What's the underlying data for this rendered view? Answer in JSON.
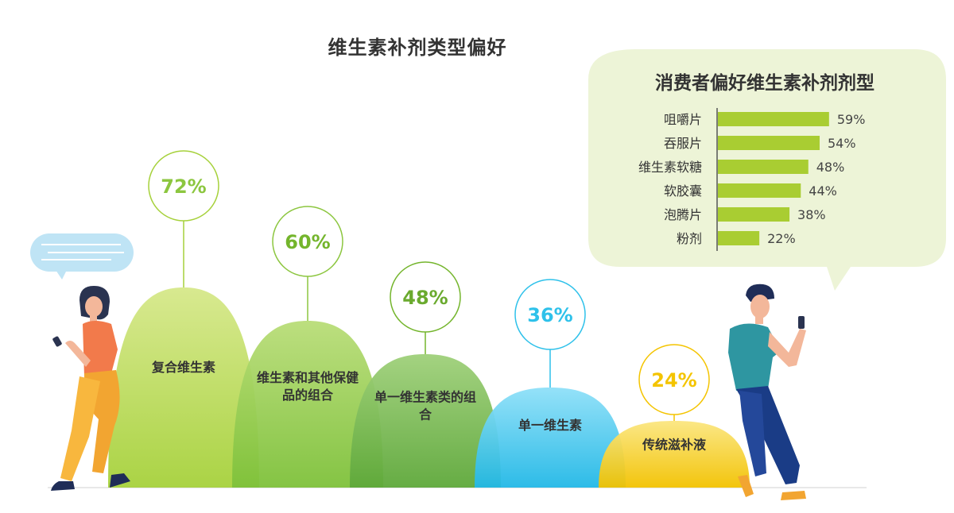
{
  "main_title": "维生素补剂类型偏好",
  "colors": {
    "green_dark": "#74b52c",
    "green_mid": "#8cc63f",
    "green_light": "#c8e07a",
    "cyan": "#2ec1ea",
    "yellow": "#f4c400",
    "bar": "#a9cd32",
    "bubble": "#edf4d7"
  },
  "chart_data": [
    {
      "type": "bar",
      "title": "维生素补剂类型偏好",
      "categories": [
        "复合维生素",
        "维生素和其他保健品的组合",
        "单一维生素类的组合",
        "单一维生素",
        "传统滋补液"
      ],
      "values": [
        72,
        60,
        48,
        36,
        24
      ],
      "value_labels": [
        "72%",
        "60%",
        "48%",
        "36%",
        "24%"
      ],
      "label_colors": [
        "#8cc63f",
        "#74b52c",
        "#6aaa2e",
        "#2ec1ea",
        "#f4c400"
      ]
    },
    {
      "type": "bar",
      "orientation": "horizontal",
      "title": "消费者偏好维生素补剂剂型",
      "categories": [
        "咀嚼片",
        "吞服片",
        "维生素软糖",
        "软胶囊",
        "泡腾片",
        "粉剂"
      ],
      "values": [
        59,
        54,
        48,
        44,
        38,
        22
      ],
      "value_labels": [
        "59%",
        "54%",
        "48%",
        "44%",
        "38%",
        "22%"
      ]
    }
  ]
}
